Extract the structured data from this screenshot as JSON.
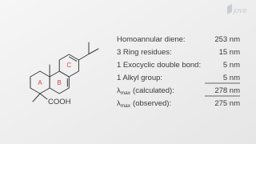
{
  "logo": "jove",
  "structure": {
    "rings": [
      "A",
      "B",
      "C"
    ],
    "substituent": "COOH"
  },
  "table": {
    "rows": [
      {
        "label": "Homoannular diene:",
        "value": "253 nm"
      },
      {
        "label": "3 Ring residues:",
        "value": "15 nm"
      },
      {
        "label": "1 Exocyclic double bond:",
        "value": "5 nm"
      },
      {
        "label": "1 Alkyl group:",
        "value": "5 nm"
      },
      {
        "label": {
          "symbol": "λ",
          "subscript": "max",
          "text": "(calculated):"
        },
        "value": "278 nm"
      },
      {
        "label": {
          "symbol": "λ",
          "subscript": "max",
          "text": "(observed):"
        },
        "value": "275 nm"
      }
    ]
  }
}
